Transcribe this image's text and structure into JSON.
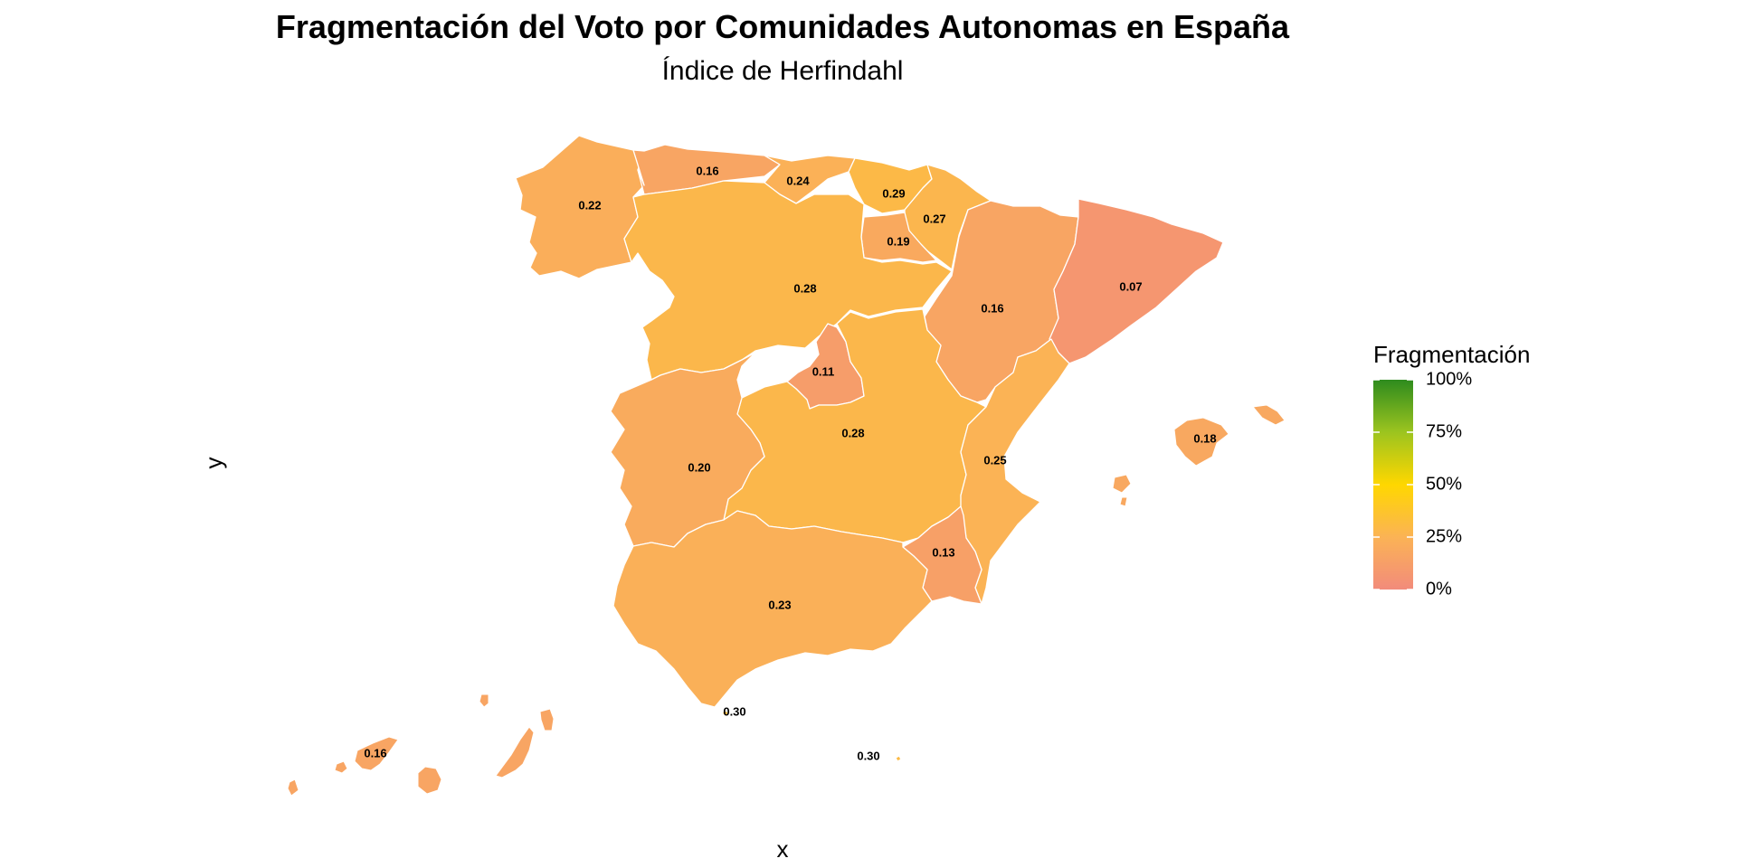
{
  "title": "Fragmentación del Voto por Comunidades Autonomas en España",
  "subtitle": "Índice de Herfindahl",
  "axes": {
    "x_label": "x",
    "y_label": "y"
  },
  "legend": {
    "title": "Fragmentación",
    "ticks": [
      "100%",
      "75%",
      "50%",
      "25%",
      "0%"
    ],
    "tick_values": [
      1.0,
      0.75,
      0.5,
      0.25,
      0.0
    ],
    "gradient_colors": [
      "#f28b7b",
      "#fbb355",
      "#ffd700",
      "#9cc41f",
      "#2e8b1e"
    ],
    "gradient_stops": [
      0,
      0.25,
      0.5,
      0.75,
      1
    ]
  },
  "chart_data": {
    "type": "choropleth",
    "scale": {
      "min": 0,
      "max": 1
    },
    "regions": [
      {
        "key": "galicia",
        "label": "0.22",
        "value": 0.22
      },
      {
        "key": "asturias",
        "label": "0.16",
        "value": 0.16
      },
      {
        "key": "cantabria",
        "label": "0.24",
        "value": 0.24
      },
      {
        "key": "pais_vasco",
        "label": "0.29",
        "value": 0.29
      },
      {
        "key": "navarra",
        "label": "0.27",
        "value": 0.27
      },
      {
        "key": "la_rioja",
        "label": "0.19",
        "value": 0.19
      },
      {
        "key": "castilla_leon",
        "label": "0.28",
        "value": 0.28
      },
      {
        "key": "aragon",
        "label": "0.16",
        "value": 0.16
      },
      {
        "key": "cataluna",
        "label": "0.07",
        "value": 0.07
      },
      {
        "key": "madrid",
        "label": "0.11",
        "value": 0.11
      },
      {
        "key": "castilla_la_mancha",
        "label": "0.28",
        "value": 0.28
      },
      {
        "key": "extremadura",
        "label": "0.20",
        "value": 0.2
      },
      {
        "key": "valencia",
        "label": "0.25",
        "value": 0.25
      },
      {
        "key": "murcia",
        "label": "0.13",
        "value": 0.13
      },
      {
        "key": "andalucia",
        "label": "0.23",
        "value": 0.23
      },
      {
        "key": "baleares",
        "label": "0.18",
        "value": 0.18
      },
      {
        "key": "canarias",
        "label": "0.16",
        "value": 0.16
      },
      {
        "key": "ceuta",
        "label": "0.30",
        "value": 0.3
      },
      {
        "key": "melilla",
        "label": "0.30",
        "value": 0.3
      }
    ]
  }
}
